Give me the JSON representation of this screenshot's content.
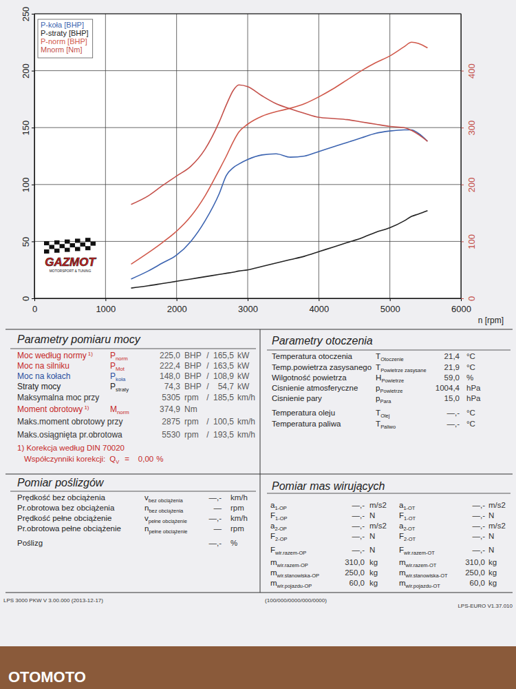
{
  "chart_data": {
    "type": "line",
    "xlabel": "n [rpm]",
    "xlim": [
      0,
      6000
    ],
    "xticks": [
      0,
      1000,
      2000,
      3000,
      4000,
      5000,
      6000
    ],
    "ylim": [
      0,
      250
    ],
    "yticks": [
      0,
      50,
      100,
      150,
      200,
      250
    ],
    "y2lim": [
      0,
      500
    ],
    "y2ticks": [
      0,
      100,
      200,
      300,
      400
    ],
    "grid": true,
    "legend": "upper left",
    "x": [
      1360,
      1600,
      1800,
      2000,
      2200,
      2400,
      2600,
      2700,
      2800,
      2875,
      3000,
      3200,
      3400,
      3600,
      3800,
      4000,
      4200,
      4400,
      4600,
      4800,
      5000,
      5200,
      5305,
      5400,
      5530
    ],
    "series": [
      {
        "name": "P-koła [BHP]",
        "color": "#3b63b0",
        "values": [
          17,
          24,
          31,
          38,
          50,
          68,
          92,
          108,
          115,
          118,
          122,
          126,
          127,
          124,
          125,
          129,
          133,
          137,
          141,
          145,
          147,
          148,
          148,
          145,
          138
        ]
      },
      {
        "name": "P-straty [BHP]",
        "color": "#222222",
        "values": [
          9,
          11,
          13,
          15,
          17,
          19,
          21,
          22,
          23,
          24,
          25,
          28,
          31,
          34,
          37,
          41,
          45,
          49,
          53,
          58,
          62,
          68,
          72,
          74,
          77
        ]
      },
      {
        "name": "P-norm [BHP]",
        "color": "#d0584a",
        "values": [
          30,
          40,
          49,
          59,
          72,
          90,
          113,
          125,
          138,
          146,
          153,
          160,
          164,
          167,
          171,
          177,
          184,
          192,
          200,
          207,
          213,
          221,
          225,
          224,
          220
        ]
      },
      {
        "name": "Mnorm [Nm]",
        "color": "#c4504a",
        "axis": "y2",
        "values": [
          165,
          180,
          198,
          215,
          232,
          262,
          310,
          340,
          366,
          375,
          372,
          356,
          342,
          333,
          325,
          318,
          316,
          314,
          310,
          306,
          302,
          300,
          295,
          288,
          276
        ]
      }
    ]
  },
  "logo": {
    "title": "GAZMOT",
    "subtitle": "MOTORSPORT & TUNING"
  },
  "sheet": {
    "power": {
      "title": "Parametry pomiaru mocy",
      "rows": [
        {
          "label": "Moc według normy",
          "note": "1)",
          "symbol": {
            "main": "P",
            "sub": "norm"
          },
          "v1": "225,0",
          "u1": "BHP",
          "sep": "/",
          "v2": "165,5",
          "u2": "kW"
        },
        {
          "label": "Moc na silniku",
          "symbol": {
            "main": "P",
            "sub": "Mot"
          },
          "v1": "222,4",
          "u1": "BHP",
          "sep": "/",
          "v2": "163,5",
          "u2": "kW"
        },
        {
          "label": "Moc na kołach",
          "symbol": {
            "main": "P",
            "sub": "koła"
          },
          "v1": "148,0",
          "u1": "BHP",
          "sep": "/",
          "v2": "108,9",
          "u2": "kW"
        },
        {
          "label": "Straty mocy",
          "symbol": {
            "main": "P",
            "sub": "straty"
          },
          "v1": "74,3",
          "u1": "BHP",
          "sep": "/",
          "v2": "54,7",
          "u2": "kW"
        },
        {
          "label": "Maksymalna moc przy",
          "v1": "5305",
          "u1": "rpm",
          "sep": "/",
          "v2": "185,5",
          "u2": "km/h"
        },
        {
          "label": "Moment obrotowy",
          "note": "1)",
          "symbol": {
            "main": "M",
            "sub": "norm"
          },
          "v1": "374,9",
          "u1": "Nm"
        },
        {
          "label": "Maks.moment obrotowy przy",
          "v1": "2875",
          "u1": "rpm",
          "sep": "/",
          "v2": "100,5",
          "u2": "km/h"
        },
        {
          "label": "Maks.osiągnięta pr.obrotowa",
          "v1": "5530",
          "u1": "rpm",
          "sep": "/",
          "v2": "193,5",
          "u2": "km/h"
        }
      ],
      "footnote": "1) Korekcja według DIN 70020",
      "correction": {
        "label": "Współczynniki korekcji:",
        "symbol": {
          "main": "Q",
          "sub": "V"
        },
        "sign": "=",
        "value": "0,00",
        "unit": "%"
      }
    },
    "ambient": {
      "title": "Parametry otoczenia",
      "rows": [
        {
          "label": "Temperatura otoczenia",
          "symbol": {
            "main": "T",
            "sub": "Otoczenie"
          },
          "value": "21,4",
          "unit": "°C"
        },
        {
          "label": "Temp.powietrza zasysanego",
          "symbol": {
            "main": "T",
            "sub": "Powietrze zasysane"
          },
          "value": "21,9",
          "unit": "°C"
        },
        {
          "label": "Wilgotność powietrza",
          "symbol": {
            "main": "H",
            "sub": "Powietrze"
          },
          "value": "59,0",
          "unit": "%"
        },
        {
          "label": "Cisnienie atmosferyczne",
          "symbol": {
            "main": "p",
            "sub": "Powietrze"
          },
          "value": "1004,4",
          "unit": "hPa"
        },
        {
          "label": "Cisnienie pary",
          "symbol": {
            "main": "p",
            "sub": "Para"
          },
          "value": "15,0",
          "unit": "hPa"
        },
        {
          "label": "Temperatura oleju",
          "symbol": {
            "main": "T",
            "sub": "Olej"
          },
          "value": "—,-",
          "unit": "°C"
        },
        {
          "label": "Temperatura paliwa",
          "symbol": {
            "main": "T",
            "sub": "Paliwo"
          },
          "value": "—,-",
          "unit": "°C"
        }
      ]
    },
    "slip": {
      "title": "Pomiar poślizgów",
      "rows": [
        {
          "label": "Prędkość bez obciążenia",
          "symbol": {
            "main": "v",
            "sub": "bez obciążenia"
          },
          "value": "—,-",
          "unit": "km/h"
        },
        {
          "label": "Pr.obrotowa bez obciążenia",
          "symbol": {
            "main": "n",
            "sub": "bez obciążenia"
          },
          "value": "—",
          "unit": "rpm"
        },
        {
          "label": "Prędkość pełne obciążenie",
          "symbol": {
            "main": "v",
            "sub": "pełne obciążenie"
          },
          "value": "—,-",
          "unit": "km/h"
        },
        {
          "label": "Pr.obrotowa pełne obciążenie",
          "symbol": {
            "main": "n",
            "sub": "pełne obciążenie"
          },
          "value": "—",
          "unit": "rpm"
        },
        {
          "label": "Poślizg",
          "value": "—,-",
          "unit": "%"
        }
      ]
    },
    "masses": {
      "title": "Pomiar mas wirujących",
      "columns": [
        [
          {
            "symbol": {
              "main": "a",
              "sub": "1-OP"
            },
            "value": "—,-",
            "unit": "m/s2"
          },
          {
            "symbol": {
              "main": "F",
              "sub": "1-OP"
            },
            "value": "—,-",
            "unit": "N"
          },
          {
            "symbol": {
              "main": "a",
              "sub": "2-OP"
            },
            "value": "—,-",
            "unit": "m/s2"
          },
          {
            "symbol": {
              "main": "F",
              "sub": "2-OP"
            },
            "value": "—,-",
            "unit": "N"
          },
          {
            "symbol": {
              "main": "F",
              "sub": "wir.razem-OP"
            },
            "value": "—,-",
            "unit": "N"
          },
          {
            "symbol": {
              "main": "m",
              "sub": "wir.razem-OP"
            },
            "value": "310,0",
            "unit": "kg"
          },
          {
            "symbol": {
              "main": "m",
              "sub": "wir.stanowiska-OP"
            },
            "value": "250,0",
            "unit": "kg"
          },
          {
            "symbol": {
              "main": "m",
              "sub": "wir.pojazdu-OP"
            },
            "value": "60,0",
            "unit": "kg"
          }
        ],
        [
          {
            "symbol": {
              "main": "a",
              "sub": "1-OT"
            },
            "value": "—,-",
            "unit": "m/s2"
          },
          {
            "symbol": {
              "main": "F",
              "sub": "1-OT"
            },
            "value": "—,-",
            "unit": "N"
          },
          {
            "symbol": {
              "main": "a",
              "sub": "2-OT"
            },
            "value": "—,-",
            "unit": "m/s2"
          },
          {
            "symbol": {
              "main": "F",
              "sub": "2-OT"
            },
            "value": "—,-",
            "unit": "N"
          },
          {
            "symbol": {
              "main": "F",
              "sub": "wir.razem-OT"
            },
            "value": "—,-",
            "unit": "N"
          },
          {
            "symbol": {
              "main": "m",
              "sub": "wir.razem-OT"
            },
            "value": "310,0",
            "unit": "kg"
          },
          {
            "symbol": {
              "main": "m",
              "sub": "wir.stanowiska-OT"
            },
            "value": "250,0",
            "unit": "kg"
          },
          {
            "symbol": {
              "main": "m",
              "sub": "wir.pojazdu-OT"
            },
            "value": "60,0",
            "unit": "kg"
          }
        ]
      ]
    }
  },
  "footer": {
    "left": "LPS 3000 PKW V 3.00.000 (2013-12-17)",
    "center": "(100/000/0000/000/0000)",
    "right": "LPS-EURO V1.37.010"
  },
  "watermark": "OTOMOTO"
}
